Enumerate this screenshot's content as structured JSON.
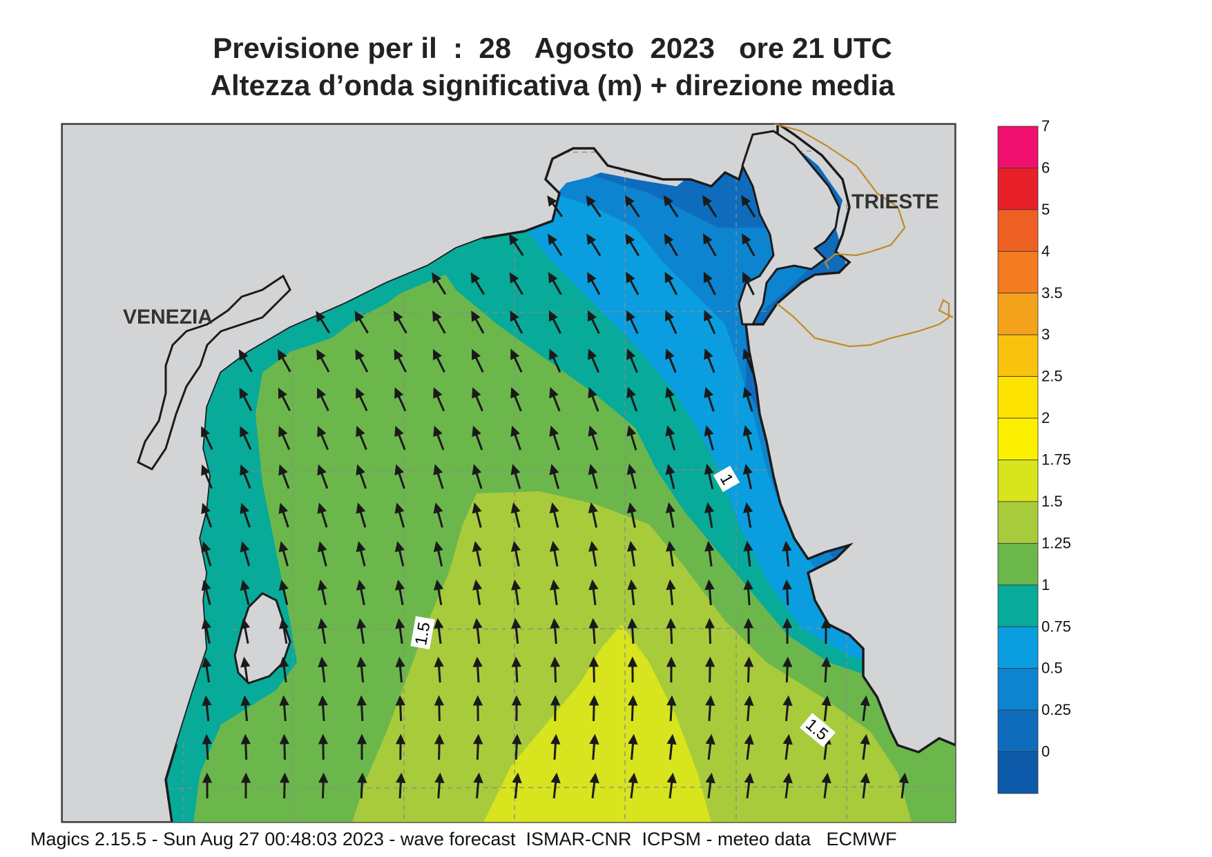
{
  "title": {
    "line1": "Previsione per il  :  28   Agosto  2023   ore 21 UTC",
    "line2": "Altezza d’onda significativa (m) + direzione media"
  },
  "cities": [
    {
      "name": "VENEZIA"
    },
    {
      "name": "TRIESTE"
    }
  ],
  "contour_labels": [
    "1",
    "1.5",
    "1.5"
  ],
  "colorbar": {
    "ticks": [
      "7",
      "6",
      "5",
      "4",
      "3.5",
      "3",
      "2.5",
      "2",
      "1.75",
      "1.5",
      "1.25",
      "1",
      "0.75",
      "0.5",
      "0.25",
      "0"
    ],
    "colors": [
      "#f0106e",
      "#e8202a",
      "#ee5f24",
      "#f47c20",
      "#f5a21c",
      "#f9c20e",
      "#fde300",
      "#fcf000",
      "#d7e41e",
      "#a8cb3c",
      "#6cb74c",
      "#08aa9a",
      "#0a9ee0",
      "#0d84cf",
      "#0f6cbd",
      "#0d5aaa"
    ]
  },
  "map_colors": {
    "land": "#d3d4d6",
    "coast": "#1b1b1b",
    "border": "#c08a25",
    "grid": "#8a8a8a",
    "arrow": "#1a1a1a"
  },
  "footer": "Magics 2.15.5 - Sun Aug 27 00:48:03 2023 - wave forecast  ISMAR-CNR  ICPSM - meteo data   ECMWF"
}
